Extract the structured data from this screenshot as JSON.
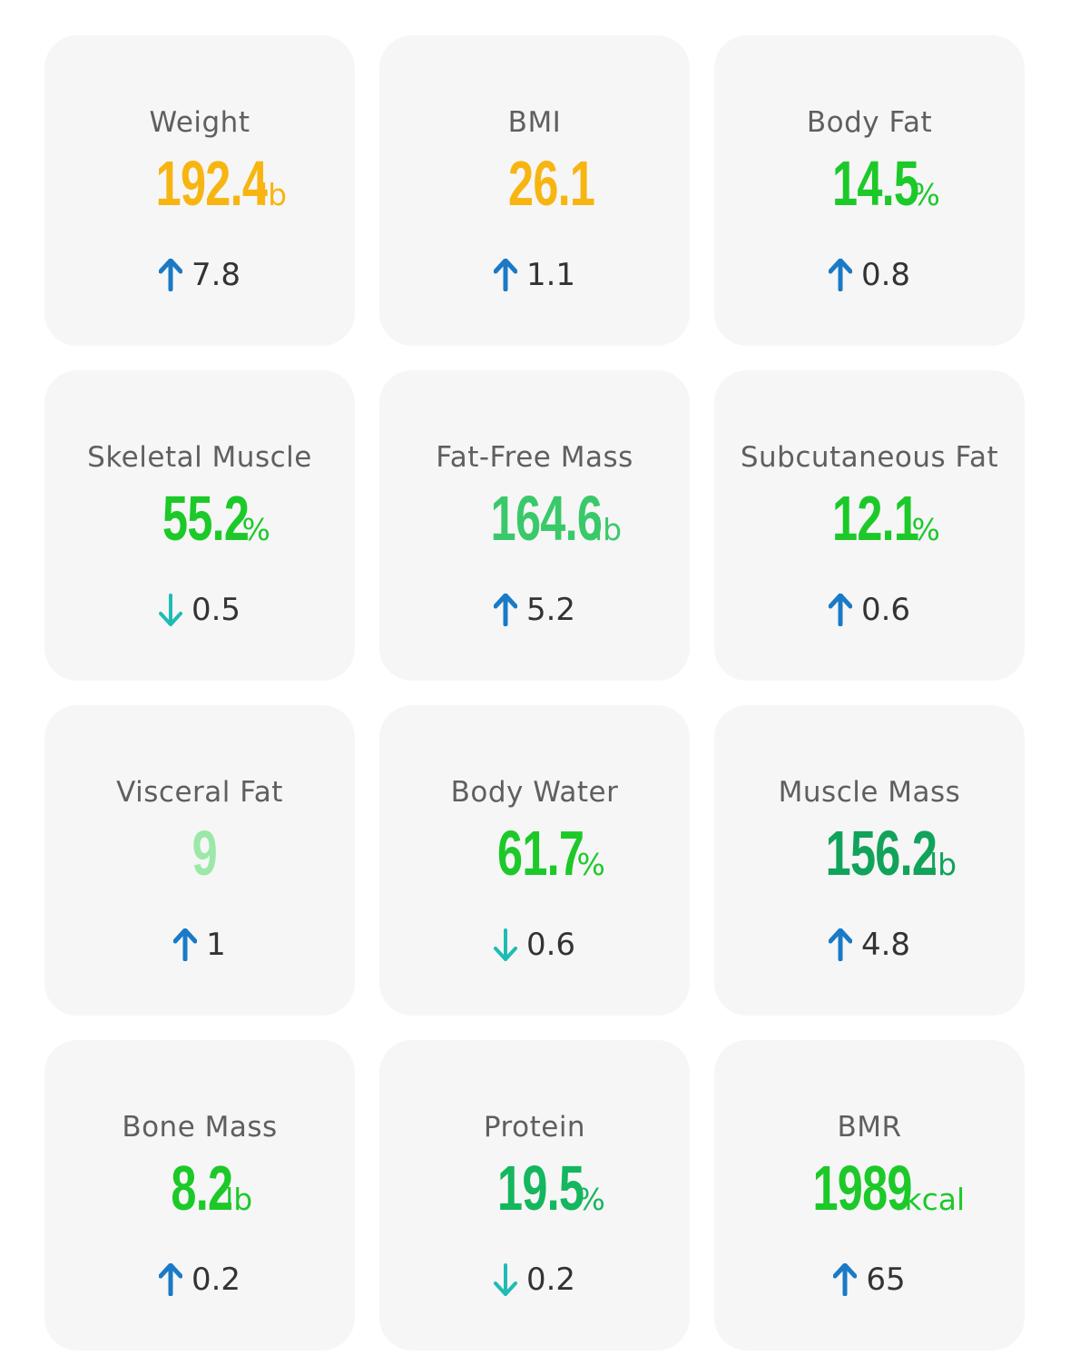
{
  "colors": {
    "up_arrow": "#1a7ac6",
    "down_arrow": "#1fbcb4",
    "orange": "#f7b512",
    "green": "#1cc929",
    "green_mid": "#3ac96a",
    "green_light": "#9be8a8",
    "green_dark": "#11a35a",
    "green_teal": "#14b65e"
  },
  "metrics": [
    {
      "label": "Weight",
      "value": "192.4",
      "unit": "lb",
      "delta": "7.8",
      "direction": "up",
      "color": "#f7b512"
    },
    {
      "label": "BMI",
      "value": "26.1",
      "unit": "",
      "delta": "1.1",
      "direction": "up",
      "color": "#f7b512"
    },
    {
      "label": "Body Fat",
      "value": "14.5",
      "unit": "%",
      "delta": "0.8",
      "direction": "up",
      "color": "#1cc929"
    },
    {
      "label": "Skeletal Muscle",
      "value": "55.2",
      "unit": "%",
      "delta": "0.5",
      "direction": "down",
      "color": "#1cc929"
    },
    {
      "label": "Fat-Free Mass",
      "value": "164.6",
      "unit": "lb",
      "delta": "5.2",
      "direction": "up",
      "color": "#3ac96a"
    },
    {
      "label": "Subcutaneous Fat",
      "value": "12.1",
      "unit": "%",
      "delta": "0.6",
      "direction": "up",
      "color": "#1cc929"
    },
    {
      "label": "Visceral Fat",
      "value": "9",
      "unit": "",
      "delta": "1",
      "direction": "up",
      "color": "#9be8a8"
    },
    {
      "label": "Body Water",
      "value": "61.7",
      "unit": "%",
      "delta": "0.6",
      "direction": "down",
      "color": "#1cc929"
    },
    {
      "label": "Muscle Mass",
      "value": "156.2",
      "unit": "lb",
      "delta": "4.8",
      "direction": "up",
      "color": "#11a35a"
    },
    {
      "label": "Bone Mass",
      "value": "8.2",
      "unit": "lb",
      "delta": "0.2",
      "direction": "up",
      "color": "#1cc929"
    },
    {
      "label": "Protein",
      "value": "19.5",
      "unit": "%",
      "delta": "0.2",
      "direction": "down",
      "color": "#14b65e"
    },
    {
      "label": "BMR",
      "value": "1989",
      "unit": "kcal",
      "delta": "65",
      "direction": "up",
      "color": "#1cc929"
    }
  ]
}
